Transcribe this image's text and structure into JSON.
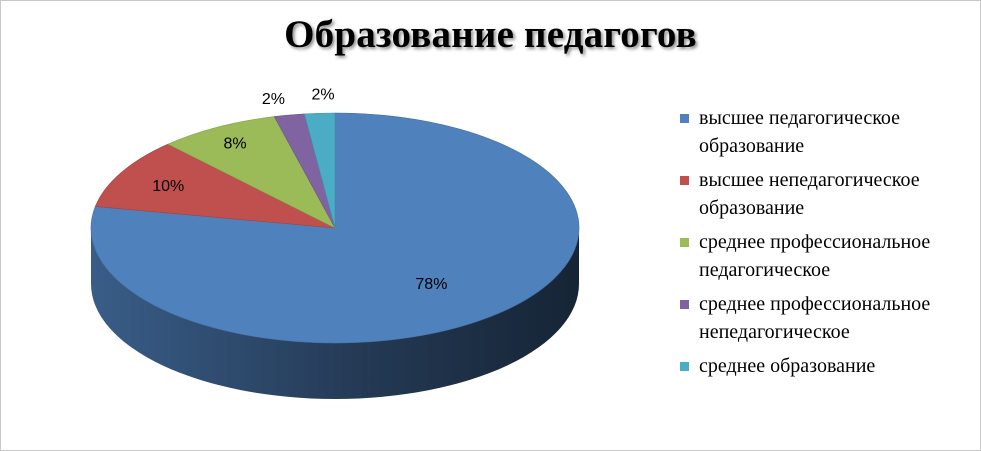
{
  "chart_data": {
    "type": "pie",
    "title": "Образование педагогов",
    "categories": [
      "высшее педагогическое образование",
      "высшее непедагогическое образование",
      "среднее профессиональное педагогическое",
      "среднее профессиональное непедагогическое",
      "среднее образование"
    ],
    "values": [
      78,
      10,
      8,
      2,
      2
    ],
    "labels": [
      "78%",
      "10%",
      "8%",
      "2%",
      "2%"
    ],
    "colors": [
      "#4f81bd",
      "#c0504d",
      "#9bbb59",
      "#8064a2",
      "#4bacc6"
    ],
    "legend_position": "right",
    "style": "3d"
  }
}
